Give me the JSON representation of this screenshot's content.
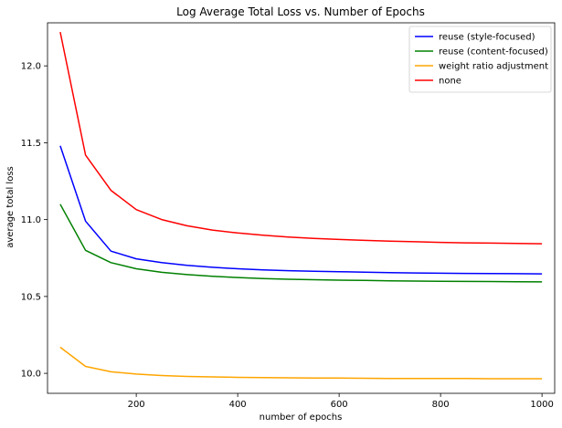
{
  "chart_data": {
    "type": "line",
    "title": "Log Average Total Loss vs. Number of Epochs",
    "xlabel": "number of epochs",
    "ylabel": "average total loss",
    "xlim": [
      25,
      1025
    ],
    "ylim": [
      9.87,
      12.28
    ],
    "xticks": [
      200,
      400,
      600,
      800,
      1000
    ],
    "yticks": [
      10.0,
      10.5,
      11.0,
      11.5,
      12.0
    ],
    "grid": false,
    "legend_position": "top-right",
    "x": [
      50,
      100,
      150,
      200,
      250,
      300,
      350,
      400,
      450,
      500,
      550,
      600,
      650,
      700,
      750,
      800,
      850,
      900,
      950,
      1000
    ],
    "series": [
      {
        "name": "reuse (style-focused)",
        "color": "#0000ff",
        "values": [
          11.48,
          10.99,
          10.795,
          10.745,
          10.72,
          10.703,
          10.69,
          10.68,
          10.673,
          10.668,
          10.664,
          10.661,
          10.658,
          10.655,
          10.653,
          10.651,
          10.65,
          10.649,
          10.648,
          10.647
        ]
      },
      {
        "name": "reuse (content-focused)",
        "color": "#008000",
        "values": [
          11.1,
          10.8,
          10.72,
          10.68,
          10.657,
          10.642,
          10.631,
          10.623,
          10.617,
          10.612,
          10.609,
          10.606,
          10.604,
          10.602,
          10.6,
          10.599,
          10.598,
          10.597,
          10.596,
          10.595
        ]
      },
      {
        "name": "weight ratio adjustment",
        "color": "#ffa500",
        "values": [
          10.17,
          10.045,
          10.01,
          9.995,
          9.986,
          9.98,
          9.977,
          9.974,
          9.972,
          9.971,
          9.97,
          9.969,
          9.968,
          9.967,
          9.967,
          9.966,
          9.966,
          9.965,
          9.965,
          9.965
        ]
      },
      {
        "name": "none",
        "color": "#ff0000",
        "values": [
          12.22,
          11.42,
          11.19,
          11.065,
          11.0,
          10.96,
          10.932,
          10.913,
          10.898,
          10.887,
          10.878,
          10.871,
          10.865,
          10.86,
          10.856,
          10.852,
          10.849,
          10.847,
          10.845,
          10.843
        ]
      }
    ]
  }
}
